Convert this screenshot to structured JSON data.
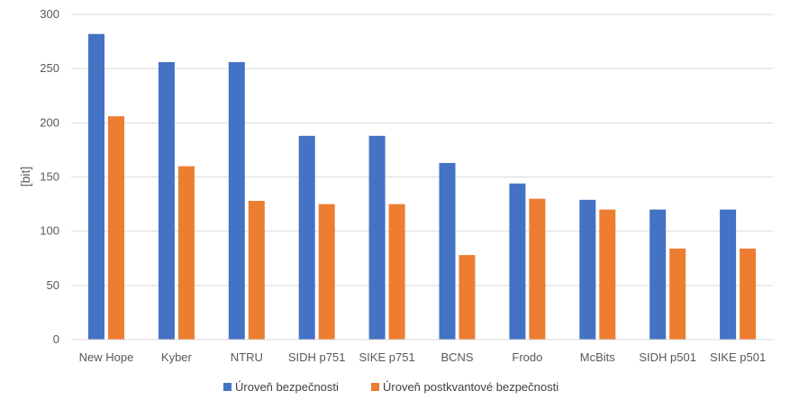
{
  "chart_data": {
    "type": "bar",
    "title": "",
    "xlabel": "",
    "ylabel": "[bit]",
    "ylim": [
      0,
      300
    ],
    "yticks": [
      0,
      50,
      100,
      150,
      200,
      250,
      300
    ],
    "grid": true,
    "legend_position": "bottom",
    "categories": [
      "New Hope",
      "Kyber",
      "NTRU",
      "SIDH p751",
      "SIKE p751",
      "BCNS",
      "Frodo",
      "McBits",
      "SIDH p501",
      "SIKE p501"
    ],
    "series": [
      {
        "name": "Úroveň bezpečnosti",
        "color": "#4472C4",
        "values": [
          282,
          256,
          256,
          188,
          188,
          163,
          144,
          129,
          120,
          120
        ]
      },
      {
        "name": "Úroveň postkvantové bezpečnosti",
        "color": "#ED7D31",
        "values": [
          206,
          160,
          128,
          125,
          125,
          78,
          130,
          120,
          84,
          84
        ]
      }
    ]
  }
}
